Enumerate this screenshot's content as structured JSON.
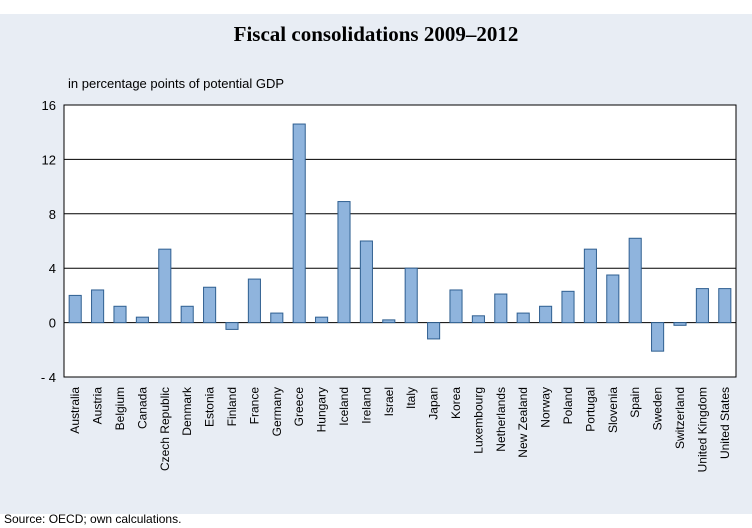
{
  "chart_data": {
    "type": "bar",
    "title": "Fiscal consolidations 2009–2012",
    "unit_label": "in percentage points of potential GDP",
    "source": "Source: OECD; own calculations.",
    "ylim": [
      -4,
      16
    ],
    "yticks": [
      16,
      12,
      8,
      4,
      0,
      -4
    ],
    "ytick_labels": [
      "16",
      "12",
      "8",
      "4",
      "0",
      "- 4"
    ],
    "grid": true,
    "bar_color": "#8fb4dd",
    "bar_edge": "#2f5f91",
    "categories": [
      "Australia",
      "Austria",
      "Belgium",
      "Canada",
      "Czech Republic",
      "Denmark",
      "Estonia",
      "Finland",
      "France",
      "Germany",
      "Greece",
      "Hungary",
      "Iceland",
      "Ireland",
      "Israel",
      "Italy",
      "Japan",
      "Korea",
      "Luxembourg",
      "Netherlands",
      "New Zealand",
      "Norway",
      "Poland",
      "Portugal",
      "Slovenia",
      "Spain",
      "Sweden",
      "Switzerland",
      "United Kingdom",
      "United States"
    ],
    "values": [
      2.0,
      2.4,
      1.2,
      0.4,
      5.4,
      1.2,
      2.6,
      -0.5,
      3.2,
      0.7,
      14.6,
      0.4,
      8.9,
      6.0,
      0.2,
      4.0,
      -1.2,
      2.4,
      0.5,
      2.1,
      0.7,
      1.2,
      2.3,
      5.4,
      3.5,
      6.2,
      -2.1,
      -0.2,
      2.5,
      2.5
    ]
  }
}
